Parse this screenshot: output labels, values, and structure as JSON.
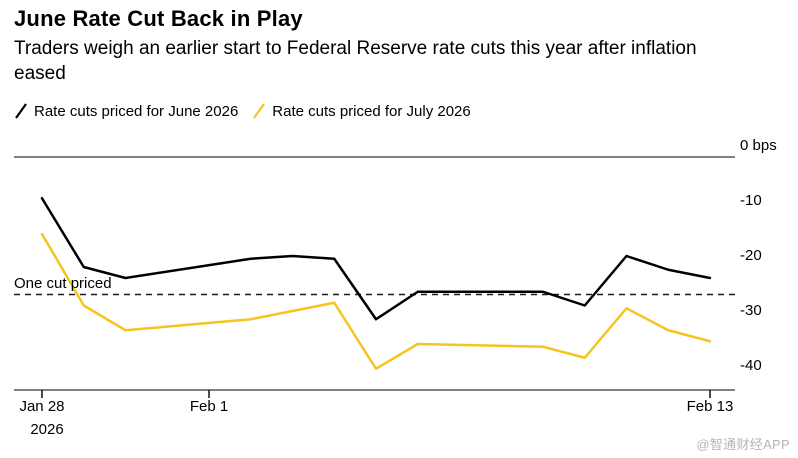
{
  "header": {
    "title": "June Rate Cut Back in Play",
    "subtitle": "Traders weigh an earlier start to Federal Reserve rate cuts this year after inflation eased"
  },
  "legend": [
    {
      "label": "Rate cuts priced for June 2026",
      "color": "#000000"
    },
    {
      "label": "Rate cuts priced for July 2026",
      "color": "#f5c41f"
    }
  ],
  "chart_data": {
    "type": "line",
    "title": "June Rate Cut Back in Play",
    "x_unit": "calendar days since Jan 28, 2026 (trading days plotted)",
    "x": [
      0,
      1,
      2,
      5,
      6,
      7,
      8,
      9,
      12,
      13,
      14,
      15,
      16
    ],
    "x_dates": [
      "Jan 28",
      "Jan 29",
      "Jan 30",
      "Feb 2",
      "Feb 3",
      "Feb 4",
      "Feb 5",
      "Feb 6",
      "Feb 9",
      "Feb 10",
      "Feb 11",
      "Feb 12",
      "Feb 13"
    ],
    "series": [
      {
        "name": "Rate cuts priced for June 2026",
        "color": "#000000",
        "values": [
          -7.5,
          -20,
          -22,
          -18.5,
          -18,
          -18.5,
          -29.5,
          -24.5,
          -24.5,
          -27,
          -18,
          -20.5,
          -22
        ]
      },
      {
        "name": "Rate cuts priced for July 2026",
        "color": "#f5c41f",
        "values": [
          -14,
          -27,
          -31.5,
          -29.5,
          -28,
          -26.5,
          -38.5,
          -34,
          -34.5,
          -36.5,
          -27.5,
          -31.5,
          -33.5
        ]
      }
    ],
    "annotation": {
      "label": "One cut priced",
      "value": -25,
      "style": "dashed"
    },
    "y_ticks": [
      {
        "value": 0,
        "label": "0 bps"
      },
      {
        "value": -10,
        "label": "-10"
      },
      {
        "value": -20,
        "label": "-20"
      },
      {
        "value": -30,
        "label": "-30"
      },
      {
        "value": -40,
        "label": "-40"
      }
    ],
    "x_ticks": [
      {
        "day": 0,
        "label": "Jan 28",
        "sublabel": "2026"
      },
      {
        "day": 4,
        "label": "Feb 1"
      },
      {
        "day": 16,
        "label": "Feb 13"
      }
    ],
    "ylabel": "bps",
    "ylim": [
      -42.5,
      0
    ],
    "xlim": [
      0,
      16
    ],
    "grid": "off",
    "legend_position": "top-left"
  },
  "watermark": "@智通财经APP"
}
